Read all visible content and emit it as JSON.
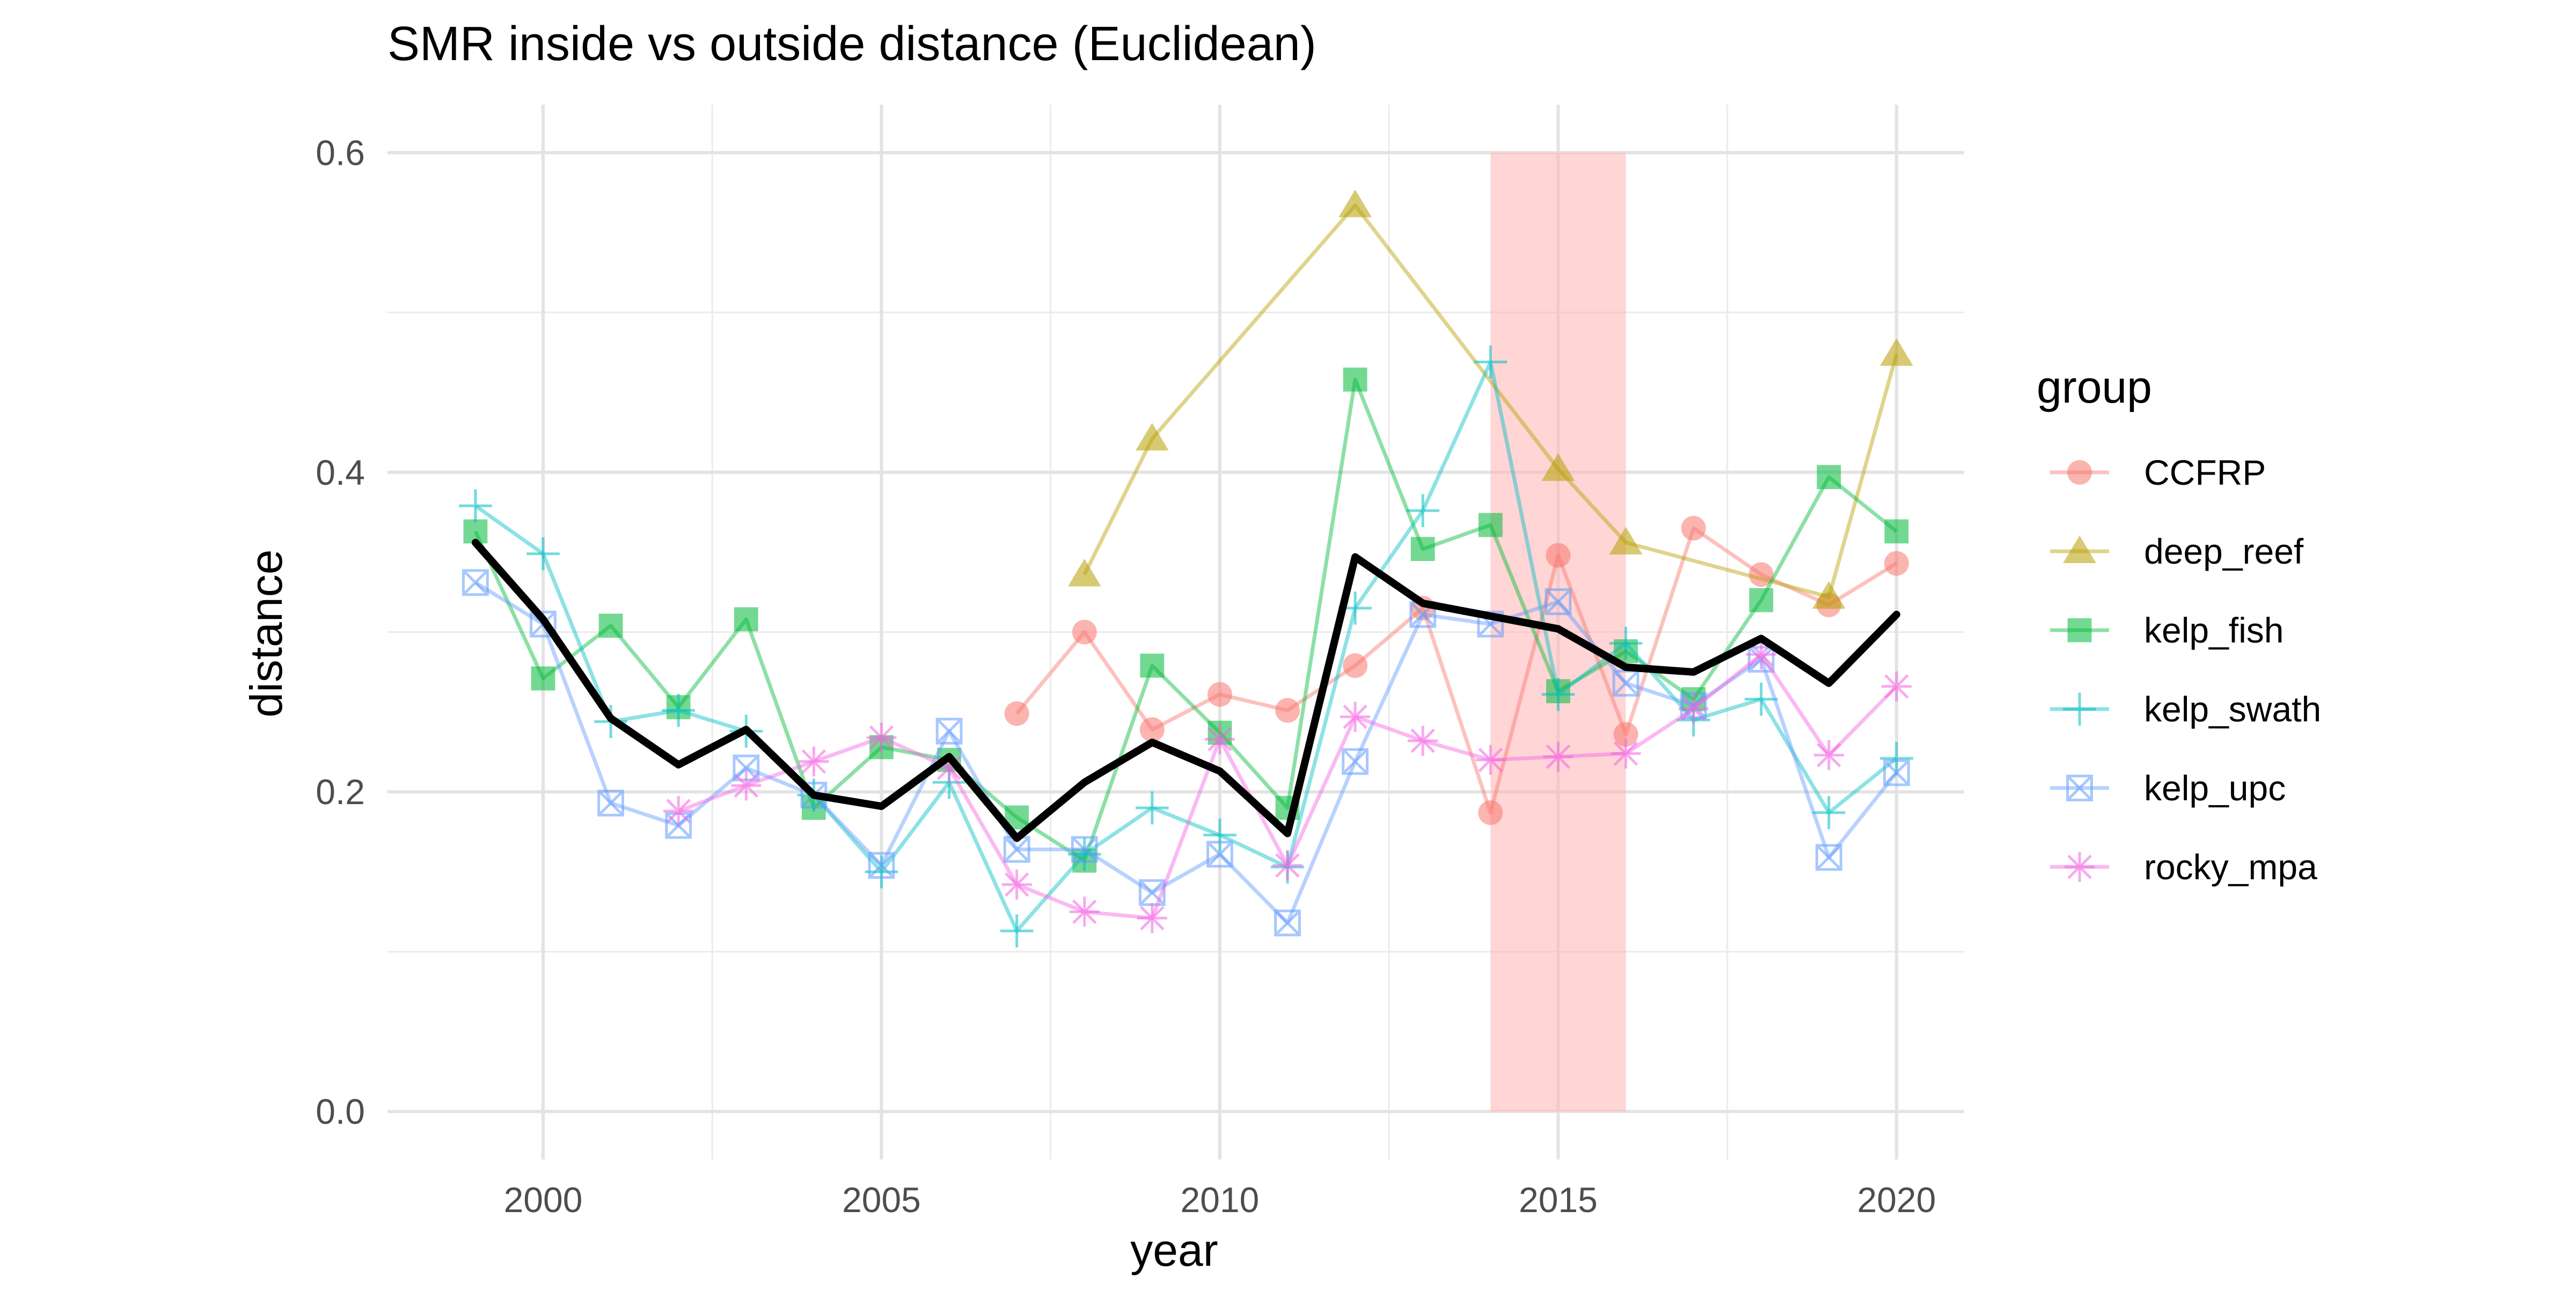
{
  "chart_data": {
    "type": "line",
    "title": "SMR inside vs outside distance (Euclidean)",
    "xlabel": "year",
    "ylabel": "distance",
    "xlim": [
      1997.7,
      2021.0
    ],
    "ylim": [
      -0.03,
      0.63
    ],
    "x_ticks": [
      2000,
      2005,
      2010,
      2015,
      2020
    ],
    "x_tick_labels": [
      "2000",
      "2005",
      "2010",
      "2015",
      "2020"
    ],
    "y_ticks": [
      0.0,
      0.2,
      0.4,
      0.6
    ],
    "y_tick_labels": [
      "0.0",
      "0.2",
      "0.4",
      "0.6"
    ],
    "grid": true,
    "legend": {
      "title": "group",
      "position": "right"
    },
    "highlight_band": {
      "x_start": 2014,
      "x_end": 2016,
      "y_start": 0.0,
      "y_end": 0.6,
      "color": "#ffb3b3"
    },
    "series": [
      {
        "name": "CCFRP",
        "color": "#F8766D",
        "shape": "circle",
        "x": [
          2007,
          2008,
          2009,
          2010,
          2011,
          2012,
          2013,
          2014,
          2015,
          2016,
          2017,
          2018,
          2019,
          2020
        ],
        "y": [
          0.249,
          0.3,
          0.239,
          0.261,
          0.251,
          0.279,
          0.315,
          0.187,
          0.348,
          0.236,
          0.365,
          0.336,
          0.317,
          0.343
        ]
      },
      {
        "name": "deep_reef",
        "color": "#B79F00",
        "shape": "triangle",
        "x": [
          2008,
          2009,
          2012,
          2015,
          2016,
          2019,
          2020
        ],
        "y": [
          0.336,
          0.421,
          0.567,
          0.402,
          0.356,
          0.322,
          0.474
        ]
      },
      {
        "name": "kelp_fish",
        "color": "#00BA38",
        "shape": "square",
        "x": [
          1999,
          2000,
          2001,
          2002,
          2003,
          2004,
          2005,
          2006,
          2007,
          2008,
          2009,
          2010,
          2011,
          2012,
          2013,
          2014,
          2015,
          2016,
          2017,
          2018,
          2019,
          2020
        ],
        "y": [
          0.363,
          0.271,
          0.304,
          0.253,
          0.308,
          0.19,
          0.228,
          0.22,
          0.184,
          0.157,
          0.279,
          0.237,
          0.19,
          0.458,
          0.352,
          0.367,
          0.263,
          0.288,
          0.258,
          0.32,
          0.397,
          0.363
        ]
      },
      {
        "name": "kelp_swath",
        "color": "#00BFC4",
        "shape": "plus",
        "x": [
          1999,
          2000,
          2001,
          2002,
          2003,
          2004,
          2005,
          2006,
          2007,
          2008,
          2009,
          2010,
          2011,
          2012,
          2013,
          2014,
          2015,
          2016,
          2017,
          2018,
          2019,
          2020
        ],
        "y": [
          0.379,
          0.349,
          0.244,
          0.251,
          0.238,
          0.198,
          0.15,
          0.206,
          0.113,
          0.161,
          0.19,
          0.173,
          0.153,
          0.315,
          0.376,
          0.469,
          0.261,
          0.293,
          0.245,
          0.258,
          0.187,
          0.221
        ]
      },
      {
        "name": "kelp_upc",
        "color": "#619CFF",
        "shape": "square-x",
        "x": [
          1999,
          2000,
          2001,
          2002,
          2003,
          2004,
          2005,
          2006,
          2007,
          2008,
          2009,
          2010,
          2011,
          2012,
          2013,
          2014,
          2015,
          2016,
          2017,
          2018,
          2019,
          2020
        ],
        "y": [
          0.331,
          0.305,
          0.193,
          0.179,
          0.215,
          0.198,
          0.154,
          0.238,
          0.164,
          0.164,
          0.137,
          0.161,
          0.118,
          0.219,
          0.311,
          0.305,
          0.319,
          0.268,
          0.254,
          0.283,
          0.159,
          0.212
        ]
      },
      {
        "name": "rocky_mpa",
        "color": "#F564E3",
        "shape": "star",
        "x": [
          2002,
          2003,
          2004,
          2005,
          2006,
          2007,
          2008,
          2009,
          2010,
          2011,
          2012,
          2013,
          2014,
          2015,
          2016,
          2017,
          2018,
          2019,
          2020
        ],
        "y": [
          0.188,
          0.204,
          0.219,
          0.234,
          0.215,
          0.142,
          0.125,
          0.121,
          0.233,
          0.154,
          0.247,
          0.232,
          0.22,
          0.222,
          0.224,
          0.252,
          0.286,
          0.223,
          0.266
        ]
      }
    ],
    "mean_line": {
      "color": "#000000",
      "x": [
        1999,
        2000,
        2001,
        2002,
        2003,
        2004,
        2005,
        2006,
        2007,
        2008,
        2009,
        2010,
        2011,
        2012,
        2013,
        2014,
        2015,
        2016,
        2017,
        2018,
        2019,
        2020
      ],
      "y": [
        0.356,
        0.308,
        0.246,
        0.217,
        0.239,
        0.198,
        0.191,
        0.222,
        0.171,
        0.206,
        0.231,
        0.213,
        0.174,
        0.347,
        0.318,
        0.31,
        0.302,
        0.278,
        0.275,
        0.296,
        0.268,
        0.311
      ]
    }
  }
}
